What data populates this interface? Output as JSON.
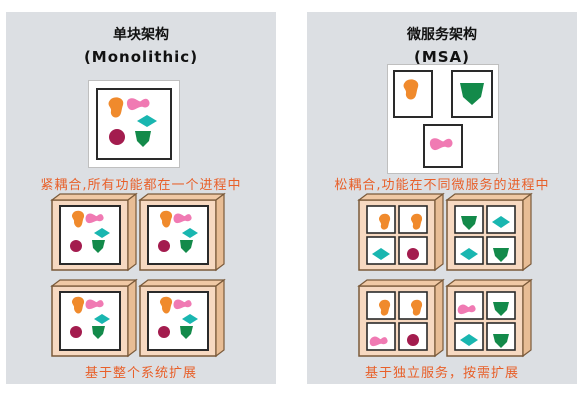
{
  "left": {
    "title": "单块架构",
    "subtitle": "(Monolithic)",
    "caption_top": "紧耦合,所有功能都在一个进程中",
    "caption_bottom": "基于整个系统扩展"
  },
  "right": {
    "title": "微服务架构",
    "subtitle": "(MSA)",
    "caption_top": "松耦合,功能在不同微服务的进程中",
    "caption_bottom": "基于独立服务，按需扩展"
  },
  "colors": {
    "panel": "#dcdfe3",
    "caption": "#e8602a",
    "crate_fill": "#f7d9c1",
    "crate_stroke": "#7a5a3a",
    "orange_shape": "#f08a2c",
    "pink_shape": "#f07ab3",
    "teal_shape": "#19b6b0",
    "maroon_shape": "#a31c4e",
    "green_shape": "#138a4a"
  }
}
